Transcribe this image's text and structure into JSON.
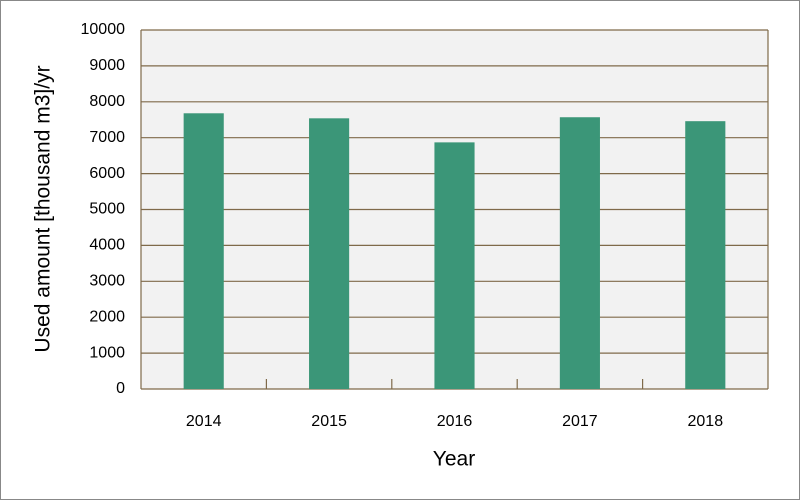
{
  "chart_data": {
    "type": "bar",
    "x_label": "Year",
    "y_label": "Used amount [thousand m3]/yr",
    "categories": [
      "2014",
      "2015",
      "2016",
      "2017",
      "2018"
    ],
    "values": [
      7680,
      7540,
      6870,
      7570,
      7460
    ],
    "color": "#3b9678",
    "ylim": [
      0,
      10000
    ],
    "yticks": [
      0,
      1000,
      2000,
      3000,
      4000,
      5000,
      6000,
      7000,
      8000,
      9000,
      10000
    ],
    "grid": true
  }
}
